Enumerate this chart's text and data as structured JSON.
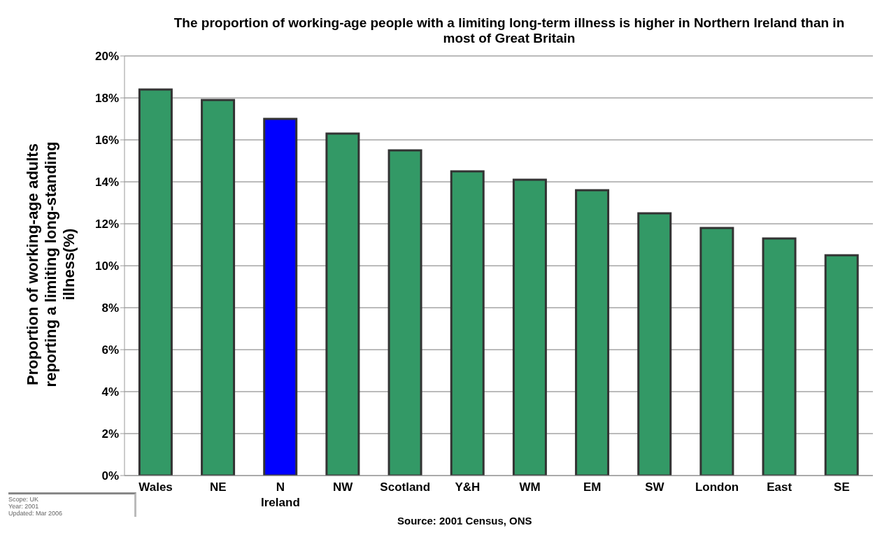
{
  "chart_data": {
    "type": "bar",
    "title": "The proportion of working-age people with a limiting long-term illness is higher in Northern Ireland than in most of Great Britain",
    "ylabel": "Proportion of working-age adults reporting a limiting long-standing illness(%)",
    "categories": [
      "Wales",
      "NE",
      "N Ireland",
      "NW",
      "Scotland",
      "Y&H",
      "WM",
      "EM",
      "SW",
      "London",
      "East",
      "SE"
    ],
    "values": [
      18.4,
      17.9,
      17.0,
      16.3,
      15.5,
      14.5,
      14.1,
      13.6,
      12.5,
      11.8,
      11.3,
      10.5
    ],
    "colors": [
      "#339966",
      "#339966",
      "#0000ff",
      "#339966",
      "#339966",
      "#339966",
      "#339966",
      "#339966",
      "#339966",
      "#339966",
      "#339966",
      "#339966"
    ],
    "ylim": [
      0,
      20
    ],
    "yticks": [
      {
        "value": 0,
        "label": "0%"
      },
      {
        "value": 2,
        "label": "2%"
      },
      {
        "value": 4,
        "label": "4%"
      },
      {
        "value": 6,
        "label": "6%"
      },
      {
        "value": 8,
        "label": "8%"
      },
      {
        "value": 10,
        "label": "10%"
      },
      {
        "value": 12,
        "label": "12%"
      },
      {
        "value": 14,
        "label": "14%"
      },
      {
        "value": 16,
        "label": "16%"
      },
      {
        "value": 18,
        "label": "18%"
      },
      {
        "value": 20,
        "label": "20%"
      }
    ],
    "grid": "y",
    "annotations": [
      "Source: 2001 Census, ONS",
      "Scope: UK",
      "Year: 2001",
      "Updated: Mar 2006"
    ]
  }
}
